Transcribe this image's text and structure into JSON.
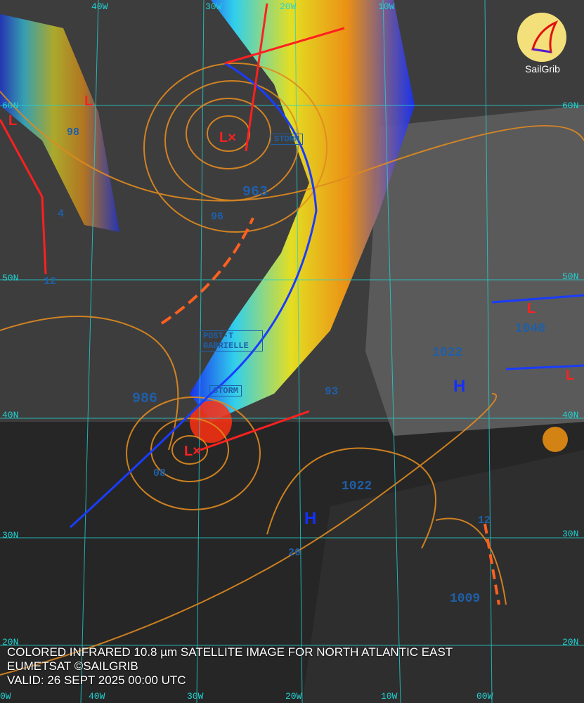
{
  "caption": {
    "line1": "COLORED INFRARED 10.8 µm SATELLITE IMAGE FOR NORTH ATLANTIC EAST",
    "line2": "EUMETSAT ©SAILGRIB",
    "line3": "VALID:  26 SEPT 2025 00:00 UTC"
  },
  "logo": {
    "text": "SailGrib",
    "color": "#f4e07a"
  },
  "grid": {
    "lon_top": [
      "40W",
      "30W",
      "20W",
      "10W"
    ],
    "lon_bottom": [
      "0W",
      "40W",
      "30W",
      "20W",
      "10W",
      "00W"
    ],
    "lat_left": [
      "60N",
      "50N",
      "40N",
      "30N",
      "20N"
    ],
    "lat_right": [
      "60N",
      "50N",
      "40N",
      "30N",
      "20N"
    ]
  },
  "systems": {
    "storm_north": "STORM",
    "storm_south": "STORM",
    "gabrielle": "POST-T GABRIELLE",
    "high_1": "H",
    "high_2": "H",
    "low_symbol": "L"
  },
  "isobar_labels": [
    "963",
    "96",
    "986",
    "1022",
    "1022",
    "1009",
    "1040",
    "08",
    "93",
    "20",
    "12",
    "98",
    "4",
    "12"
  ],
  "colors": {
    "isobar": "#e08a20",
    "grid": "#22d3d3",
    "cold_front": "#1a3cff",
    "warm_front": "#ff2020",
    "pressure_label": "#1f5fa8"
  }
}
